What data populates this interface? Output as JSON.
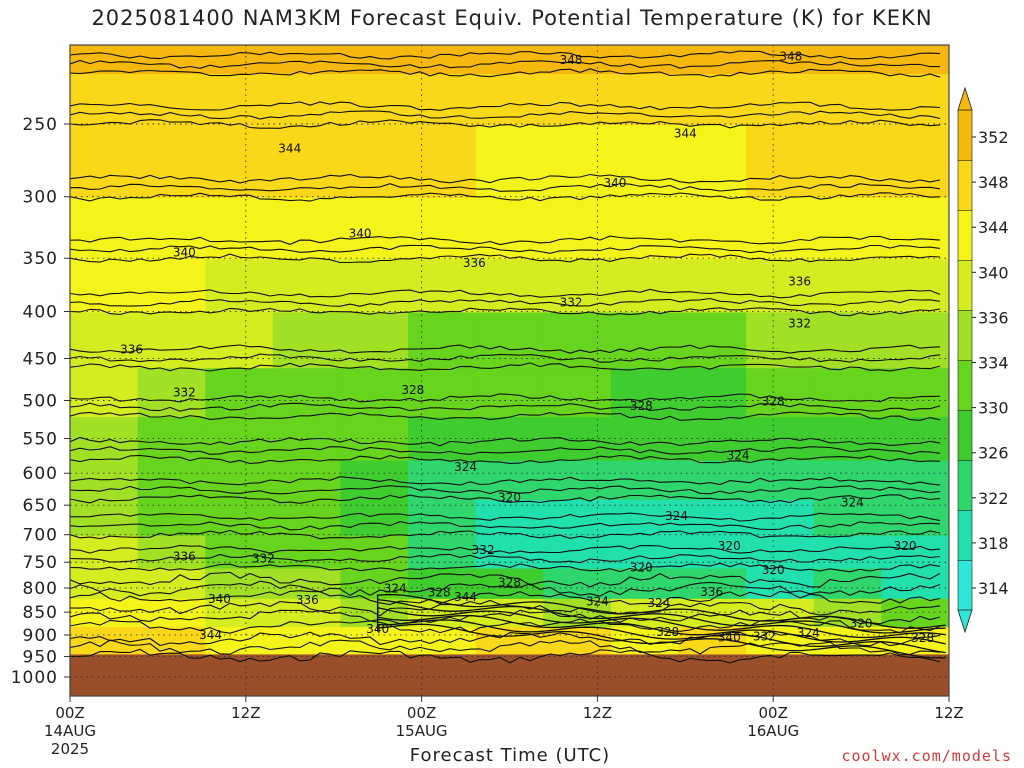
{
  "chart_data": {
    "type": "heatmap",
    "title": "2025081400 NAM3KM Forecast Equiv. Potential Temperature (K) for KEKN",
    "xlabel": "Forecast Time (UTC)",
    "ylabel": "",
    "y_scale": "log-pressure",
    "y_inverted": true,
    "ylim": [
      1050,
      200
    ],
    "y_ticks": [
      250,
      300,
      350,
      400,
      450,
      500,
      550,
      600,
      650,
      700,
      750,
      800,
      850,
      900,
      950,
      1000
    ],
    "x_ticks": [
      {
        "t": "2025-08-14 00Z",
        "label": "00Z",
        "sub": "14AUG",
        "sub2": "2025"
      },
      {
        "t": "2025-08-14 12Z",
        "label": "12Z",
        "sub": "",
        "sub2": ""
      },
      {
        "t": "2025-08-15 00Z",
        "label": "00Z",
        "sub": "15AUG",
        "sub2": ""
      },
      {
        "t": "2025-08-15 12Z",
        "label": "12Z",
        "sub": "",
        "sub2": ""
      },
      {
        "t": "2025-08-16 00Z",
        "label": "00Z",
        "sub": "16AUG",
        "sub2": ""
      },
      {
        "t": "2025-08-16 12Z",
        "label": "12Z",
        "sub": "",
        "sub2": ""
      }
    ],
    "grid": true,
    "colorbar": {
      "levels": [
        314,
        318,
        322,
        326,
        330,
        334,
        336,
        340,
        344,
        348,
        352
      ],
      "colors": [
        "#2fe6d8",
        "#22e0ae",
        "#2fd66c",
        "#3ecc2e",
        "#67d41e",
        "#a1e024",
        "#d4ec20",
        "#f5f41a",
        "#f8d818",
        "#f4b80e"
      ],
      "extend": "both"
    },
    "terrain_below_hPa": 945,
    "terrain_color": "#9a4f2b",
    "bands": [
      {
        "p_top": 950,
        "colors": [
          "#e8a408",
          "#e8a408",
          "#e8a408",
          "#e8a408",
          "#e8a408",
          "#e8a408",
          "#e8a408",
          "#e8a408",
          "#e8a408",
          "#e8a408",
          "#e8a408",
          "#e8a408",
          "#e8a408"
        ],
        "level": [
          346,
          346,
          346,
          346,
          346,
          346,
          346,
          346,
          346,
          346,
          346,
          346,
          346
        ]
      },
      {
        "p_top": 880,
        "level": [
          344,
          344,
          342,
          342,
          340,
          342,
          344,
          344,
          340,
          346,
          342,
          342,
          340
        ]
      },
      {
        "p_top": 820,
        "level": [
          342,
          340,
          338,
          338,
          334,
          336,
          338,
          334,
          336,
          336,
          336,
          334,
          332
        ]
      },
      {
        "p_top": 760,
        "level": [
          338,
          336,
          334,
          334,
          330,
          326,
          328,
          324,
          322,
          324,
          320,
          322,
          320
        ]
      },
      {
        "p_top": 700,
        "level": [
          336,
          334,
          332,
          332,
          330,
          324,
          320,
          318,
          318,
          320,
          318,
          318,
          318
        ]
      },
      {
        "p_top": 640,
        "level": [
          334,
          332,
          330,
          330,
          328,
          322,
          320,
          320,
          320,
          320,
          320,
          322,
          322
        ]
      },
      {
        "p_top": 580,
        "level": [
          334,
          332,
          330,
          330,
          328,
          324,
          324,
          324,
          324,
          324,
          324,
          324,
          324
        ]
      },
      {
        "p_top": 520,
        "level": [
          334,
          332,
          330,
          330,
          330,
          328,
          326,
          326,
          326,
          326,
          326,
          326,
          326
        ]
      },
      {
        "p_top": 460,
        "level": [
          336,
          334,
          332,
          332,
          330,
          330,
          330,
          330,
          328,
          328,
          330,
          330,
          330
        ]
      },
      {
        "p_top": 400,
        "level": [
          338,
          336,
          336,
          334,
          334,
          332,
          332,
          332,
          332,
          332,
          334,
          334,
          334
        ]
      },
      {
        "p_top": 350,
        "level": [
          340,
          340,
          338,
          338,
          338,
          336,
          336,
          336,
          336,
          336,
          336,
          338,
          338
        ]
      },
      {
        "p_top": 300,
        "level": [
          342,
          342,
          342,
          340,
          340,
          340,
          340,
          340,
          340,
          340,
          340,
          340,
          340
        ]
      },
      {
        "p_top": 250,
        "level": [
          344,
          344,
          344,
          344,
          344,
          344,
          342,
          342,
          342,
          342,
          344,
          344,
          344
        ]
      },
      {
        "p_top": 220,
        "level": [
          346,
          346,
          346,
          346,
          346,
          346,
          346,
          346,
          346,
          346,
          346,
          346,
          346
        ]
      },
      {
        "p_top": 200,
        "level": [
          348,
          348,
          348,
          348,
          348,
          348,
          348,
          348,
          348,
          348,
          348,
          348,
          348
        ]
      }
    ],
    "contour_labels": [
      {
        "text": "348",
        "t": 0.57,
        "p": 213
      },
      {
        "text": "348",
        "t": 0.82,
        "p": 211
      },
      {
        "text": "344",
        "t": 0.25,
        "p": 266
      },
      {
        "text": "344",
        "t": 0.7,
        "p": 256
      },
      {
        "text": "340",
        "t": 0.62,
        "p": 290
      },
      {
        "text": "340",
        "t": 0.13,
        "p": 345
      },
      {
        "text": "340",
        "t": 0.33,
        "p": 329
      },
      {
        "text": "336",
        "t": 0.46,
        "p": 354
      },
      {
        "text": "336",
        "t": 0.83,
        "p": 371
      },
      {
        "text": "332",
        "t": 0.57,
        "p": 391
      },
      {
        "text": "332",
        "t": 0.83,
        "p": 412
      },
      {
        "text": "336",
        "t": 0.07,
        "p": 440
      },
      {
        "text": "332",
        "t": 0.13,
        "p": 490
      },
      {
        "text": "328",
        "t": 0.39,
        "p": 487
      },
      {
        "text": "328",
        "t": 0.65,
        "p": 507
      },
      {
        "text": "328",
        "t": 0.8,
        "p": 501
      },
      {
        "text": "324",
        "t": 0.45,
        "p": 591
      },
      {
        "text": "324",
        "t": 0.76,
        "p": 574
      },
      {
        "text": "320",
        "t": 0.5,
        "p": 638
      },
      {
        "text": "324",
        "t": 0.69,
        "p": 668
      },
      {
        "text": "324",
        "t": 0.89,
        "p": 646
      },
      {
        "text": "320",
        "t": 0.75,
        "p": 720
      },
      {
        "text": "320",
        "t": 0.95,
        "p": 720
      },
      {
        "text": "320",
        "t": 0.65,
        "p": 760
      },
      {
        "text": "320",
        "t": 0.8,
        "p": 765
      },
      {
        "text": "332",
        "t": 0.47,
        "p": 727
      },
      {
        "text": "336",
        "t": 0.13,
        "p": 739
      },
      {
        "text": "332",
        "t": 0.22,
        "p": 743
      },
      {
        "text": "324",
        "t": 0.37,
        "p": 801
      },
      {
        "text": "328",
        "t": 0.42,
        "p": 809
      },
      {
        "text": "328",
        "t": 0.5,
        "p": 789
      },
      {
        "text": "344",
        "t": 0.45,
        "p": 818
      },
      {
        "text": "336",
        "t": 0.27,
        "p": 824
      },
      {
        "text": "340",
        "t": 0.17,
        "p": 822
      },
      {
        "text": "324",
        "t": 0.6,
        "p": 828
      },
      {
        "text": "324",
        "t": 0.67,
        "p": 831
      },
      {
        "text": "336",
        "t": 0.73,
        "p": 808
      },
      {
        "text": "344",
        "t": 0.16,
        "p": 900
      },
      {
        "text": "340",
        "t": 0.35,
        "p": 887
      },
      {
        "text": "328",
        "t": 0.68,
        "p": 893
      },
      {
        "text": "340",
        "t": 0.75,
        "p": 906
      },
      {
        "text": "332",
        "t": 0.79,
        "p": 903
      },
      {
        "text": "324",
        "t": 0.84,
        "p": 896
      },
      {
        "text": "320",
        "t": 0.9,
        "p": 874
      },
      {
        "text": "328",
        "t": 0.97,
        "p": 907
      }
    ],
    "colorbar_labels": [
      "352",
      "348",
      "344",
      "340",
      "336",
      "334",
      "330",
      "326",
      "322",
      "318",
      "314"
    ]
  }
}
